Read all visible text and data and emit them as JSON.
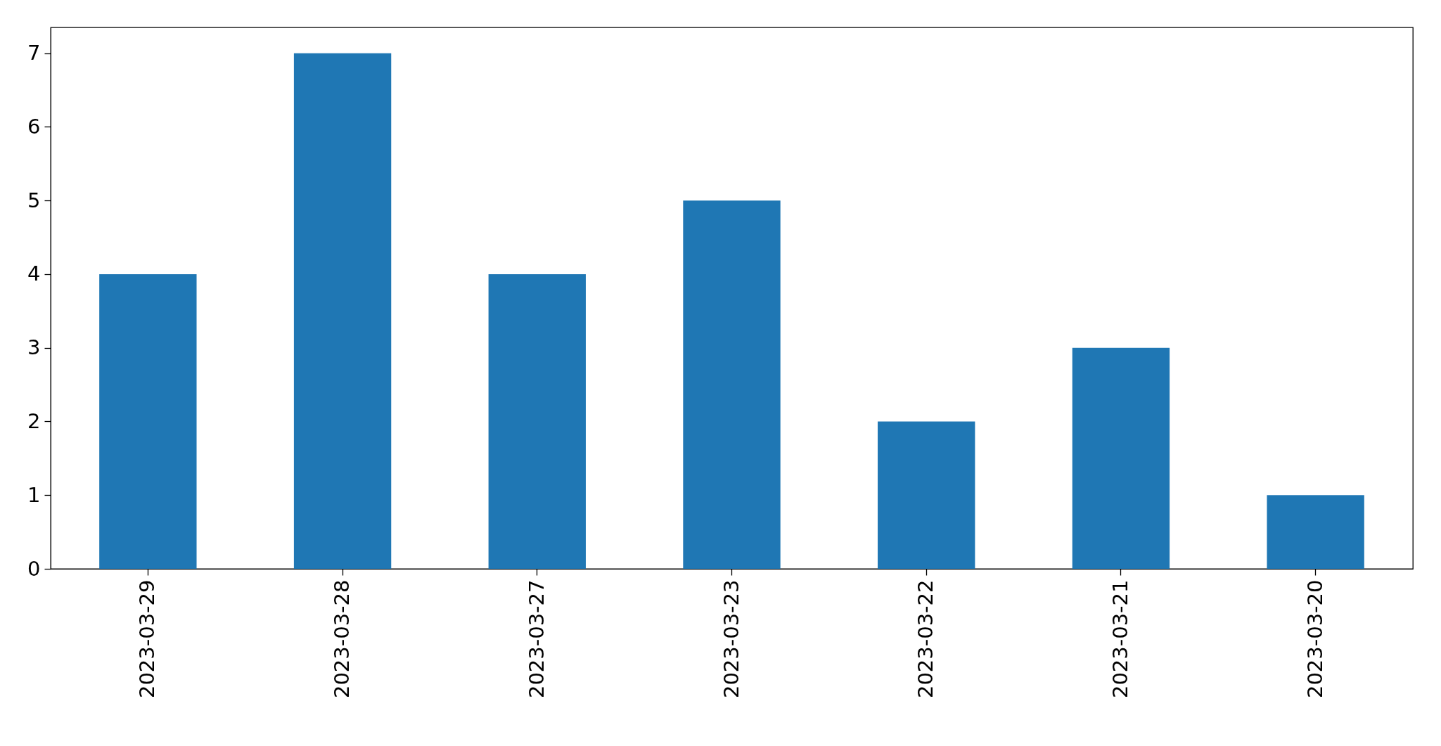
{
  "chart_data": {
    "type": "bar",
    "categories": [
      "2023-03-29",
      "2023-03-28",
      "2023-03-27",
      "2023-03-23",
      "2023-03-22",
      "2023-03-21",
      "2023-03-20"
    ],
    "values": [
      4,
      7,
      4,
      5,
      2,
      3,
      1
    ],
    "color": "#1f77b4",
    "ylim": [
      0,
      7.35
    ],
    "yticks": [
      0,
      1,
      2,
      3,
      4,
      5,
      6,
      7
    ]
  }
}
